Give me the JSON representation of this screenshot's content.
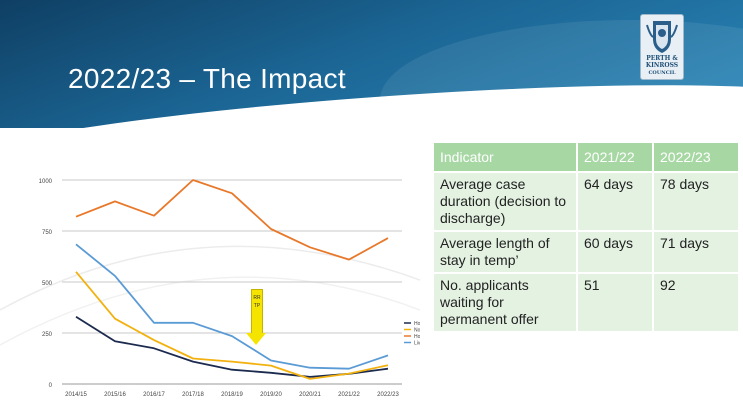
{
  "slide": {
    "title": "2022/23 – The Impact"
  },
  "logo": {
    "line1": "PERTH &",
    "line2": "KINROSS",
    "line3": "COUNCIL"
  },
  "annotation": {
    "label": "RRTP",
    "color": "#f5e400"
  },
  "table": {
    "headers": [
      "Indicator",
      "2021/22",
      "2022/23"
    ],
    "rows": [
      [
        "Average case duration (decision to discharge)",
        "64 days",
        "78 days"
      ],
      [
        "Average length of stay in temp’",
        "60 days",
        "71 days"
      ],
      [
        "No. applicants waiting for permanent offer",
        "51",
        "92"
      ]
    ],
    "header_color": "#a7d8a4",
    "cell_color": "#e4f2e2"
  },
  "chart_data": {
    "type": "line",
    "x": [
      "2014/15",
      "2015/16",
      "2016/17",
      "2017/18",
      "2018/19",
      "2019/20",
      "2020/21",
      "2021/22",
      "2022/23"
    ],
    "ylim": [
      0,
      1000
    ],
    "yticks": [
      "0",
      "250",
      "500",
      "750",
      "1000"
    ],
    "grid": true,
    "legend_position": "right",
    "series": [
      {
        "name": "Households in TA",
        "color": "#1b2a4e",
        "values": [
          330,
          210,
          175,
          110,
          70,
          55,
          35,
          50,
          75
        ]
      },
      {
        "name": "No. Waiting for an Offer",
        "color": "#f2b10f",
        "values": [
          550,
          320,
          215,
          125,
          110,
          90,
          25,
          51,
          92
        ]
      },
      {
        "name": "Homeless Presentations",
        "color": "#e8782a",
        "values": [
          820,
          895,
          825,
          1000,
          935,
          760,
          670,
          610,
          715
        ]
      },
      {
        "name": "Live Homeless Cases",
        "color": "#5b9bd5",
        "values": [
          685,
          530,
          300,
          300,
          235,
          115,
          80,
          75,
          140
        ]
      }
    ]
  }
}
